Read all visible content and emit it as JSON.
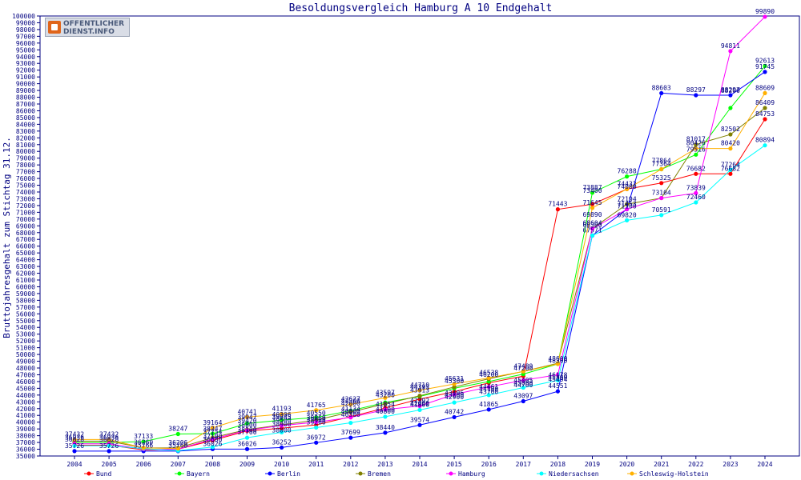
{
  "chart_data": {
    "type": "line",
    "title": "Besoldungsvergleich Hamburg A 10 Endgehalt",
    "xlabel": "",
    "ylabel": "Bruttojahresgehalt zum Stichtag 31.12.",
    "categories": [
      "2004",
      "2005",
      "2006",
      "2007",
      "2008",
      "2009",
      "2010",
      "2011",
      "2012",
      "2013",
      "2014",
      "2015",
      "2016",
      "2017",
      "2018",
      "2019",
      "2020",
      "2021",
      "2022",
      "2023",
      "2024"
    ],
    "ylim": [
      35000,
      100000
    ],
    "ytick_step": 1000,
    "grid": false,
    "legend_position": "bottom",
    "series": [
      {
        "name": "Bund",
        "color": "#ff0000",
        "values": [
          36600,
          36600,
          35900,
          36000,
          37300,
          38700,
          39100,
          39600,
          40800,
          42100,
          43400,
          44500,
          45800,
          46800,
          71443,
          72200,
          74432,
          75325,
          76682,
          76682,
          84753
        ]
      },
      {
        "name": "Bayern",
        "color": "#00ff00",
        "values": [
          37000,
          37000,
          37133,
          38247,
          38300,
          39800,
          40306,
          40700,
          41700,
          42900,
          43800,
          45000,
          46000,
          47100,
          48600,
          73887,
          76288,
          77364,
          79516,
          86409,
          92613
        ]
      },
      {
        "name": "Berlin",
        "color": "#0000ff",
        "values": [
          35726,
          35726,
          35726,
          35726,
          36026,
          36026,
          36252,
          36972,
          37699,
          38440,
          39574,
          40742,
          41865,
          43097,
          44551,
          67571,
          71453,
          88603,
          88297,
          88297,
          91745
        ]
      },
      {
        "name": "Bremen",
        "color": "#808000",
        "values": [
          37200,
          37200,
          36200,
          36200,
          37700,
          38900,
          39600,
          40300,
          41500,
          42700,
          43900,
          45200,
          46400,
          47500,
          48700,
          68604,
          72194,
          73104,
          81017,
          82502,
          86409
        ]
      },
      {
        "name": "Hamburg",
        "color": "#ff00ff",
        "values": [
          36800,
          36800,
          36000,
          36000,
          37500,
          38800,
          39500,
          40000,
          40700,
          41854,
          42398,
          44100,
          45200,
          46200,
          47000,
          68584,
          71453,
          73104,
          73839,
          94811,
          99890
        ]
      },
      {
        "name": "Niedersachsen",
        "color": "#00ffff",
        "values": [
          36500,
          36500,
          36100,
          35800,
          36326,
          37700,
          38500,
          39200,
          39900,
          40800,
          41800,
          42900,
          44000,
          45100,
          46178,
          67571,
          69820,
          70591,
          72460,
          77264,
          80894
        ]
      },
      {
        "name": "Schleswig-Holstein",
        "color": "#ffb000",
        "values": [
          37432,
          37432,
          36200,
          36100,
          39164,
          40741,
          41193,
          41765,
          42627,
          43597,
          44710,
          45631,
          46538,
          47489,
          48600,
          71645,
          74432,
          77364,
          80426,
          80420,
          88609
        ]
      }
    ],
    "data_labels": [
      [
        2004,
        "37432"
      ],
      [
        2004,
        "36936"
      ],
      [
        2004,
        "36628"
      ],
      [
        2004,
        "35726"
      ],
      [
        2005,
        "37432"
      ],
      [
        2005,
        "36936"
      ],
      [
        2005,
        "36628"
      ],
      [
        2005,
        "35726"
      ],
      [
        2006,
        "37133"
      ],
      [
        2006,
        "36260"
      ],
      [
        2006,
        "35766"
      ],
      [
        2007,
        "38247"
      ],
      [
        2007,
        "36206"
      ],
      [
        2007,
        "35760"
      ],
      [
        2008,
        "39164"
      ],
      [
        2008,
        "38247"
      ],
      [
        2008,
        "37754"
      ],
      [
        2008,
        "37100"
      ],
      [
        2008,
        "36680"
      ],
      [
        2008,
        "36026"
      ],
      [
        2009,
        "40741"
      ],
      [
        2009,
        "39947"
      ],
      [
        2009,
        "39420"
      ],
      [
        2009,
        "38800"
      ],
      [
        2009,
        "38100"
      ],
      [
        2009,
        "37700"
      ],
      [
        2009,
        "36026"
      ],
      [
        2010,
        "41193"
      ],
      [
        2010,
        "40306"
      ],
      [
        2010,
        "39945"
      ],
      [
        2010,
        "39500"
      ],
      [
        2010,
        "38900"
      ],
      [
        2010,
        "38000"
      ],
      [
        2010,
        "36252"
      ],
      [
        2011,
        "41765"
      ],
      [
        2011,
        "40550"
      ],
      [
        2011,
        "39860"
      ],
      [
        2011,
        "39600"
      ],
      [
        2011,
        "39200"
      ],
      [
        2011,
        "36972"
      ],
      [
        2012,
        "42627"
      ],
      [
        2012,
        "42300"
      ],
      [
        2012,
        "42000"
      ],
      [
        2012,
        "41134"
      ],
      [
        2012,
        "40800"
      ],
      [
        2012,
        "40300"
      ],
      [
        2012,
        "37699"
      ],
      [
        2013,
        "43597"
      ],
      [
        2013,
        "43200"
      ],
      [
        2013,
        "41854"
      ],
      [
        2013,
        "41100"
      ],
      [
        2013,
        "40800"
      ],
      [
        2013,
        "38440"
      ],
      [
        2014,
        "44710"
      ],
      [
        2014,
        "44393"
      ],
      [
        2014,
        "43913"
      ],
      [
        2014,
        "42392"
      ],
      [
        2014,
        "42000"
      ],
      [
        2014,
        "41800"
      ],
      [
        2014,
        "39574"
      ],
      [
        2015,
        "45631"
      ],
      [
        2015,
        "45300"
      ],
      [
        2015,
        "43496"
      ],
      [
        2015,
        "43200"
      ],
      [
        2015,
        "42900"
      ],
      [
        2015,
        "40742"
      ],
      [
        2016,
        "46538"
      ],
      [
        2016,
        "46200"
      ],
      [
        2016,
        "44461"
      ],
      [
        2016,
        "44100"
      ],
      [
        2016,
        "43700"
      ],
      [
        2016,
        "41865"
      ],
      [
        2017,
        "47489"
      ],
      [
        2017,
        "47200"
      ],
      [
        2017,
        "45405"
      ],
      [
        2017,
        "45000"
      ],
      [
        2017,
        "44700"
      ],
      [
        2017,
        "43097"
      ],
      [
        2018,
        "48600"
      ],
      [
        2018,
        "48300"
      ],
      [
        2018,
        "46178"
      ],
      [
        2018,
        "45800"
      ],
      [
        2018,
        "45494"
      ],
      [
        2018,
        "44551"
      ],
      [
        2018,
        "71443"
      ],
      [
        2019,
        "73887"
      ],
      [
        2019,
        "73400"
      ],
      [
        2019,
        "71645"
      ],
      [
        2019,
        "69890"
      ],
      [
        2019,
        "68604"
      ],
      [
        2019,
        "68300"
      ],
      [
        2019,
        "67571"
      ],
      [
        2020,
        "76288"
      ],
      [
        2020,
        "74432"
      ],
      [
        2020,
        "74000"
      ],
      [
        2020,
        "72194"
      ],
      [
        2020,
        "71453"
      ],
      [
        2020,
        "71100"
      ],
      [
        2020,
        "69820"
      ],
      [
        2021,
        "88603"
      ],
      [
        2021,
        "77864"
      ],
      [
        2021,
        "77364"
      ],
      [
        2021,
        "75325"
      ],
      [
        2021,
        "73104"
      ],
      [
        2021,
        "70591"
      ],
      [
        2022,
        "88297"
      ],
      [
        2022,
        "81017"
      ],
      [
        2022,
        "80426"
      ],
      [
        2022,
        "79516"
      ],
      [
        2022,
        "76682"
      ],
      [
        2022,
        "73839"
      ],
      [
        2022,
        "72460"
      ],
      [
        2023,
        "94811"
      ],
      [
        2023,
        "88297"
      ],
      [
        2023,
        "88200"
      ],
      [
        2023,
        "82502"
      ],
      [
        2023,
        "80420"
      ],
      [
        2023,
        "77264"
      ],
      [
        2023,
        "76682"
      ],
      [
        2024,
        "99890"
      ],
      [
        2024,
        "92613"
      ],
      [
        2024,
        "91745"
      ],
      [
        2024,
        "88609"
      ],
      [
        2024,
        "86409"
      ],
      [
        2024,
        "84753"
      ],
      [
        2024,
        "80894"
      ]
    ]
  },
  "logo": {
    "line1": "OFFENTLICHER",
    "line2": "DIENST.INFO"
  }
}
